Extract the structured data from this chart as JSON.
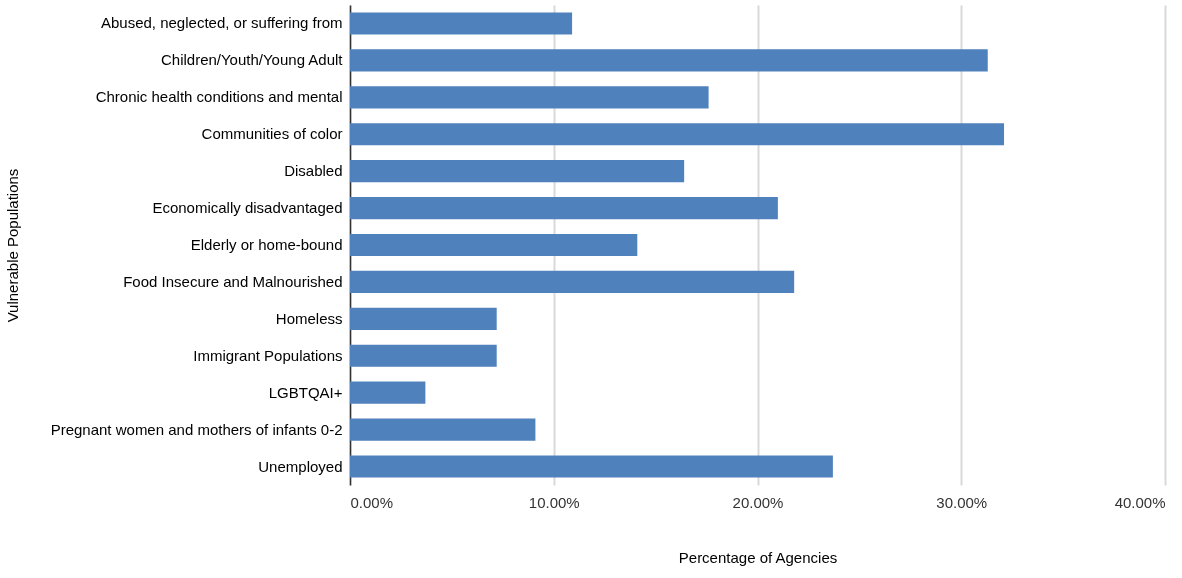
{
  "chart_data": {
    "type": "bar",
    "orientation": "horizontal",
    "xlabel": "Percentage of Agencies",
    "ylabel": "Vulnerable Populations",
    "categories": [
      "Abused, neglected, or suffering from",
      "Children/Youth/Young Adult",
      "Chronic health conditions and mental",
      "Communities of color",
      "Disabled",
      "Economically disadvantaged",
      "Elderly or home-bound",
      "Food Insecure and Malnourished",
      "Homeless",
      "Immigrant Populations",
      "LGBTQAI+",
      "Pregnant women and mothers of infants 0-2",
      "Unemployed"
    ],
    "values": [
      10.9,
      31.3,
      17.6,
      32.1,
      16.4,
      21.0,
      14.1,
      21.8,
      7.2,
      7.2,
      3.7,
      9.1,
      23.7
    ],
    "color": "#4f81bd",
    "xlim": [
      0,
      40
    ],
    "xticks": [
      {
        "value": 0,
        "label": "0.00%"
      },
      {
        "value": 10,
        "label": "10.00%"
      },
      {
        "value": 20,
        "label": "20.00%"
      },
      {
        "value": 30,
        "label": "30.00%"
      },
      {
        "value": 40,
        "label": "40.00%"
      }
    ],
    "grid": "x"
  }
}
